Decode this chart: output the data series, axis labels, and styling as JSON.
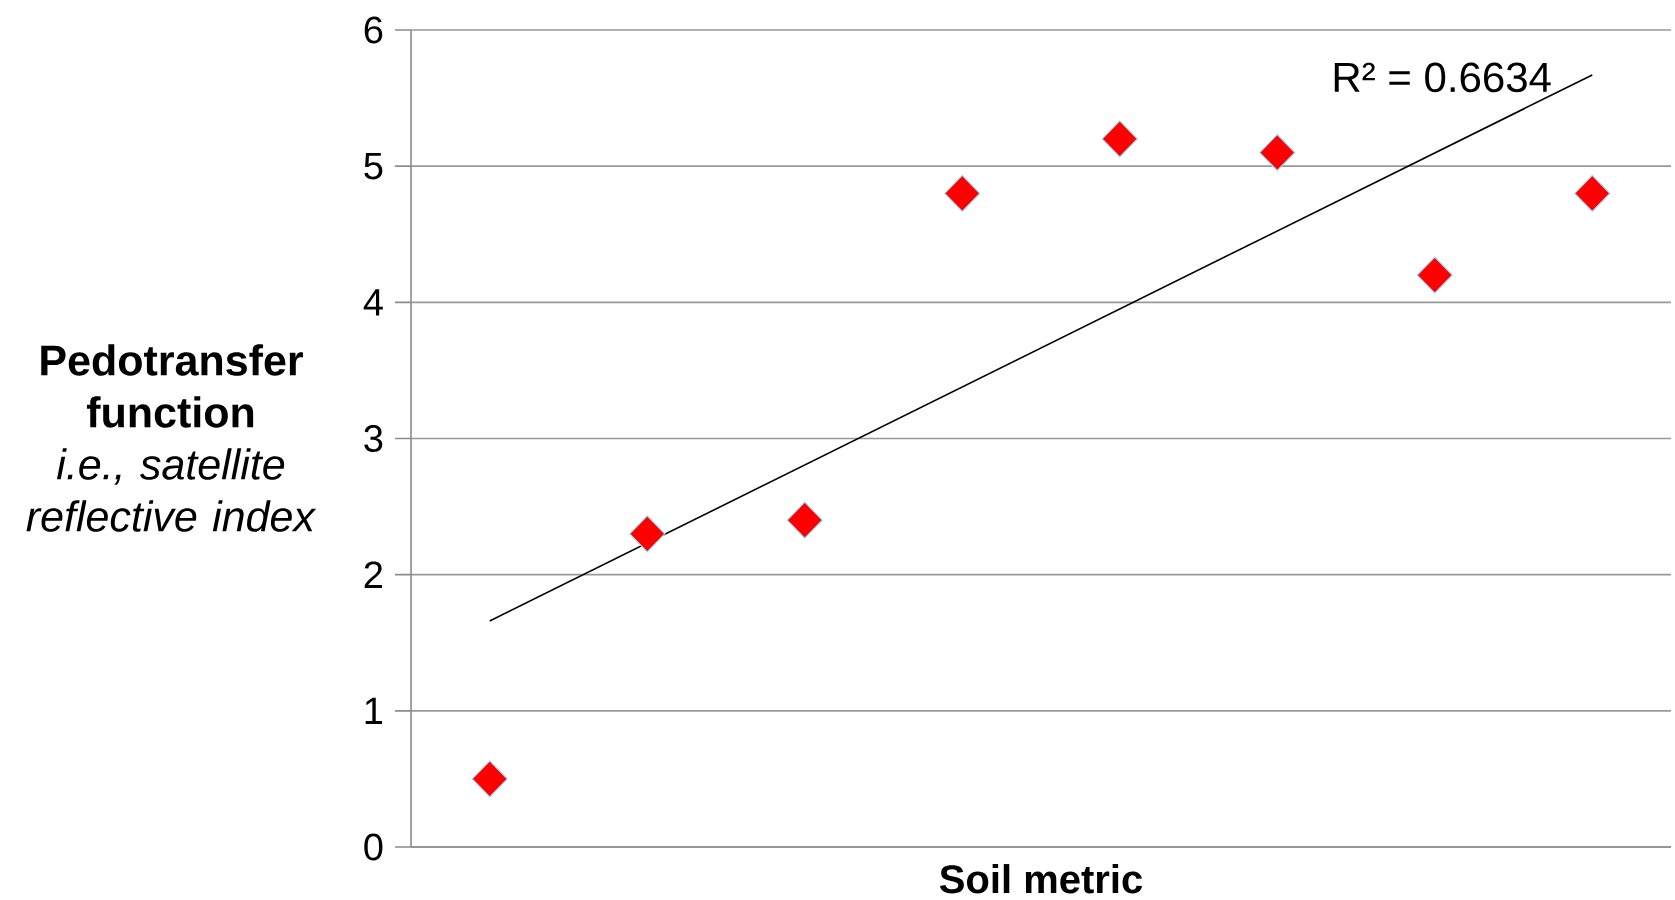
{
  "chart_data": {
    "type": "scatter",
    "xlabel": "Soil metric",
    "ylabel": "**Pedotransfer function** *i.e., satellite reflective index*",
    "categories": [
      null,
      null,
      null,
      null,
      null,
      null,
      null,
      null
    ],
    "series": [
      {
        "color": "#ff0000",
        "marker": "diamond",
        "values": [
          0.5,
          2.3,
          2.4,
          4.8,
          5.2,
          5.1,
          4.2,
          4.8
        ]
      },
      {
        "type": "line",
        "color": "#000000",
        "marker": "none",
        "values": [
          1.66,
          null,
          null,
          null,
          null,
          null,
          null,
          5.67
        ]
      }
    ],
    "annotations": [
      "R² = 0.6634"
    ],
    "ylim": [
      0,
      6
    ],
    "yticks": [
      0,
      1,
      2,
      3,
      4,
      5,
      6
    ],
    "grid": "y",
    "tick_labels": "y"
  }
}
